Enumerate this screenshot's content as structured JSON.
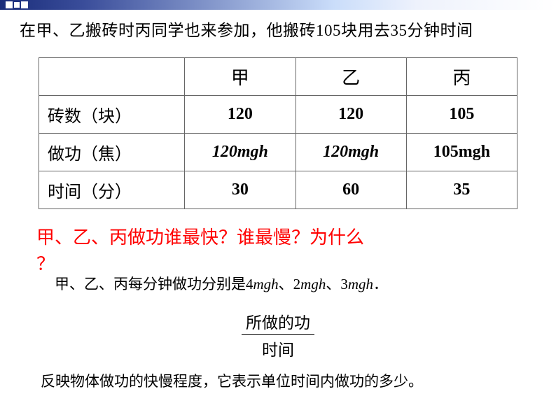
{
  "intro": "在甲、乙搬砖时丙同学也来参加，他搬砖105块用去35分钟时间",
  "table": {
    "headers": [
      "",
      "甲",
      "乙",
      "丙"
    ],
    "rows": [
      {
        "label": "砖数（块）",
        "cells": [
          "120",
          "120",
          "105"
        ],
        "italic": [
          false,
          false,
          false
        ]
      },
      {
        "label": "做功（焦）",
        "cells": [
          "120mgh",
          "120mgh",
          "105mgh"
        ],
        "italic": [
          true,
          true,
          false
        ]
      },
      {
        "label": "时间（分）",
        "cells": [
          "30",
          "60",
          "35"
        ],
        "italic": [
          false,
          false,
          false
        ]
      }
    ]
  },
  "question_line1": "甲、乙、丙做功谁最快？谁最慢？为什么",
  "question_mark": "？",
  "answer_prefix": "甲、乙、丙每分钟做功分别是4",
  "answer_m1": "mgh",
  "answer_mid1": "、2",
  "answer_m2": "mgh",
  "answer_mid2": "、3",
  "answer_m3": "mgh",
  "answer_suffix": "．",
  "fraction": {
    "numerator": "所做的功",
    "denominator": "时间"
  },
  "conclusion": "反映物体做功的快慢程度，它表示单位时间内做功的多少。",
  "colors": {
    "question": "#ff0000",
    "text": "#000000",
    "border": "#666666",
    "background": "#ffffff"
  }
}
